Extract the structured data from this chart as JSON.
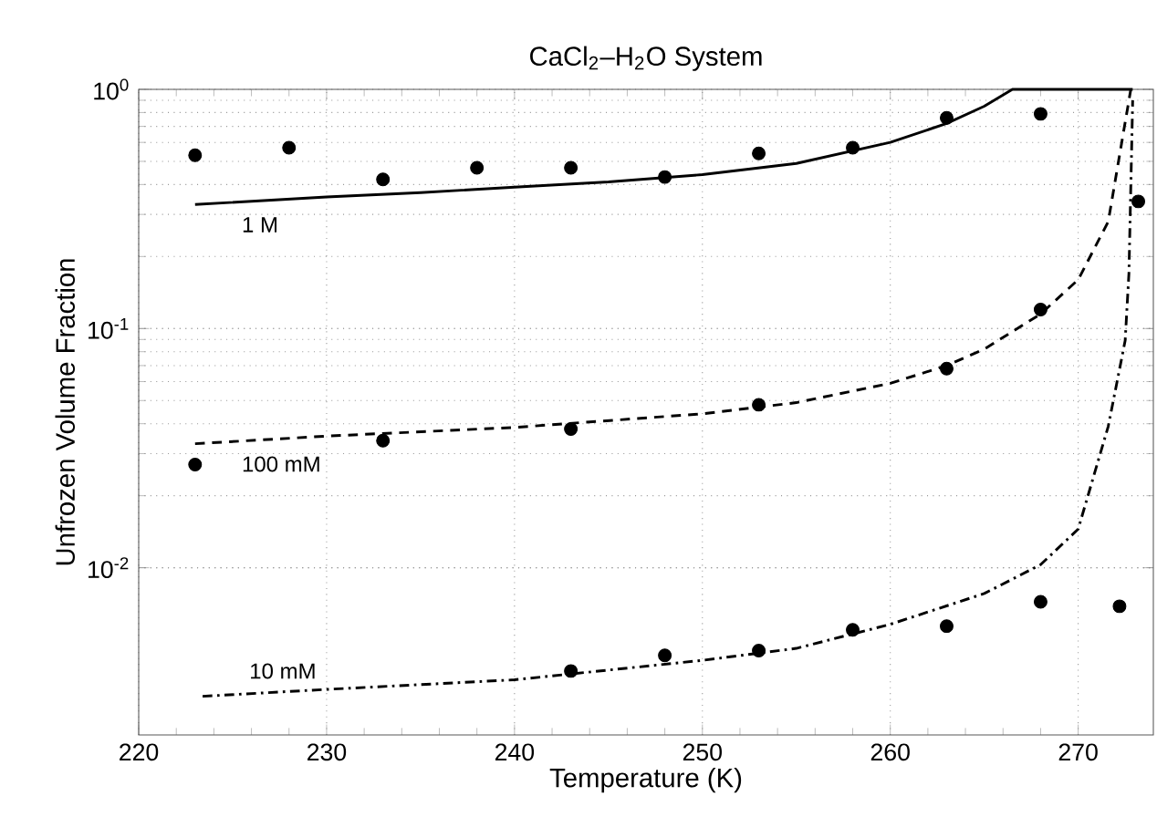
{
  "chart_data": {
    "type": "scatter",
    "title": "CaCl$_{2}$–H$_{2}$O System",
    "xlabel": "Temperature (K)",
    "ylabel": "Unfrozen Volume Fraction",
    "xlim": [
      220,
      274
    ],
    "ylim": [
      0.002,
      1
    ],
    "log": "y",
    "grid": true,
    "xticks": [
      220,
      230,
      240,
      250,
      260,
      270
    ],
    "yticks": [
      {
        "value": 0.01,
        "label": "10$^{-2}$"
      },
      {
        "value": 0.1,
        "label": "10$^{-1}$"
      },
      {
        "value": 1,
        "label": "10$^{0}$"
      }
    ],
    "series": [
      {
        "color": "#000000",
        "marker": "circle",
        "x": [
          223,
          228,
          233,
          238,
          243,
          248,
          253,
          258,
          263,
          268
        ],
        "values": [
          0.53,
          0.57,
          0.42,
          0.47,
          0.47,
          0.43,
          0.54,
          0.57,
          0.76,
          0.79
        ]
      },
      {
        "type": "line",
        "name": "1 M",
        "color": "#000000",
        "marker": "none",
        "line_style": "solid",
        "x": [
          223,
          230,
          235,
          240,
          245,
          250,
          255,
          260,
          263,
          265,
          266.5,
          272.9
        ],
        "values": [
          0.33,
          0.355,
          0.37,
          0.39,
          0.41,
          0.44,
          0.49,
          0.6,
          0.72,
          0.85,
          1,
          1
        ]
      },
      {
        "color": "#000000",
        "marker": "circle",
        "x": [
          223,
          233,
          243,
          253,
          263,
          268,
          273.2
        ],
        "values": [
          0.027,
          0.034,
          0.038,
          0.048,
          0.068,
          0.12,
          0.34
        ]
      },
      {
        "type": "line",
        "name": "100 mM",
        "color": "#000000",
        "marker": "none",
        "line_style": "dashed",
        "x": [
          223,
          230,
          240,
          250,
          255,
          260,
          263,
          265,
          268,
          270,
          271.6,
          272.7,
          272.8
        ],
        "values": [
          0.033,
          0.0355,
          0.0386,
          0.044,
          0.049,
          0.059,
          0.07,
          0.082,
          0.115,
          0.16,
          0.28,
          0.9,
          1
        ]
      },
      {
        "color": "#000000",
        "marker": "circle",
        "x": [
          243,
          248,
          253,
          258,
          263,
          268,
          272.2
        ],
        "values": [
          0.0037,
          0.0043,
          0.0045,
          0.0055,
          0.0057,
          0.0072,
          0.0069
        ]
      },
      {
        "type": "line",
        "name": "10 mM",
        "color": "#000000",
        "marker": "none",
        "line_style": "dashdot",
        "x": [
          223.4,
          230,
          240,
          250,
          255,
          260,
          265,
          268,
          270,
          271.6,
          272.5,
          272.7,
          272.9
        ],
        "values": [
          0.0029,
          0.0031,
          0.0034,
          0.0041,
          0.0046,
          0.0058,
          0.0078,
          0.0103,
          0.0145,
          0.039,
          0.089,
          0.17,
          0.9
        ]
      }
    ]
  }
}
